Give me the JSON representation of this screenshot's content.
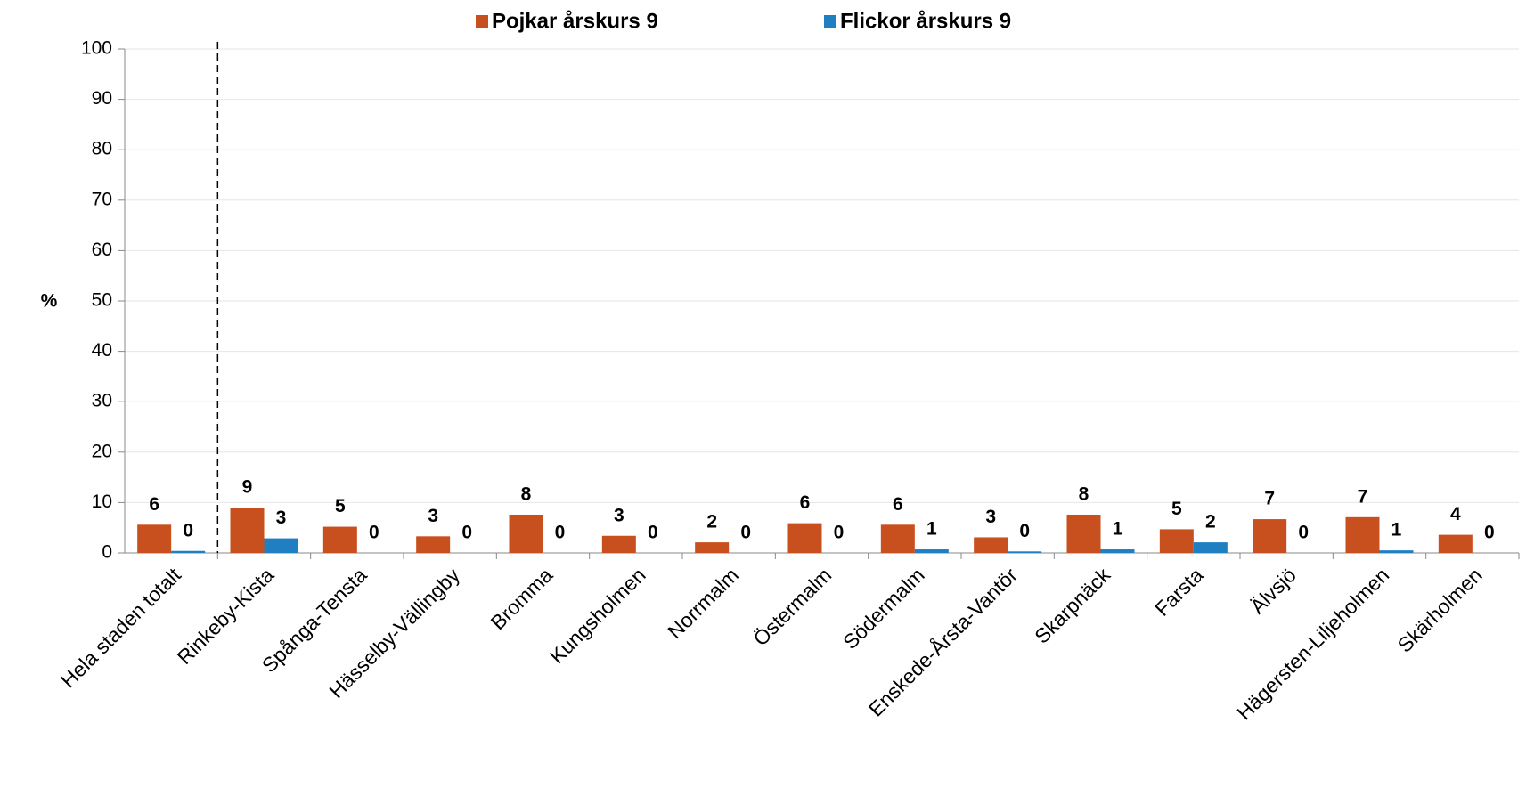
{
  "chart_data": {
    "type": "bar",
    "categories": [
      "Hela staden totalt",
      "Rinkeby-Kista",
      "Spånga-Tensta",
      "Hässelby-Vällingby",
      "Bromma",
      "Kungsholmen",
      "Norrmalm",
      "Östermalm",
      "Södermalm",
      "Enskede-Årsta-Vantör",
      "Skarpnäck",
      "Farsta",
      "Älvsjö",
      "Hägersten-Liljeholmen",
      "Skärholmen"
    ],
    "series": [
      {
        "name": "Pojkar årskurs 9",
        "color": "#c8501e",
        "values": [
          5.6,
          9.0,
          5.2,
          3.3,
          7.6,
          3.4,
          2.1,
          5.9,
          5.6,
          3.1,
          7.6,
          4.7,
          6.7,
          7.1,
          3.6
        ],
        "value_labels": [
          "6",
          "9",
          "5",
          "3",
          "8",
          "3",
          "2",
          "6",
          "6",
          "3",
          "8",
          "5",
          "7",
          "7",
          "4"
        ]
      },
      {
        "name": "Flickor årskurs 9",
        "color": "#1f7fc1",
        "values": [
          0.4,
          2.9,
          0,
          0,
          0,
          0,
          0,
          0,
          0.7,
          0.3,
          0.7,
          2.1,
          0,
          0.5,
          0
        ],
        "value_labels": [
          "0",
          "3",
          "0",
          "0",
          "0",
          "0",
          "0",
          "0",
          "1",
          "0",
          "1",
          "2",
          "0",
          "1",
          "0"
        ]
      }
    ],
    "ylabel": "%",
    "ylim": [
      0,
      100
    ],
    "yticks": [
      0,
      10,
      20,
      30,
      40,
      50,
      60,
      70,
      80,
      90,
      100
    ],
    "grid": true,
    "legend": "top"
  }
}
